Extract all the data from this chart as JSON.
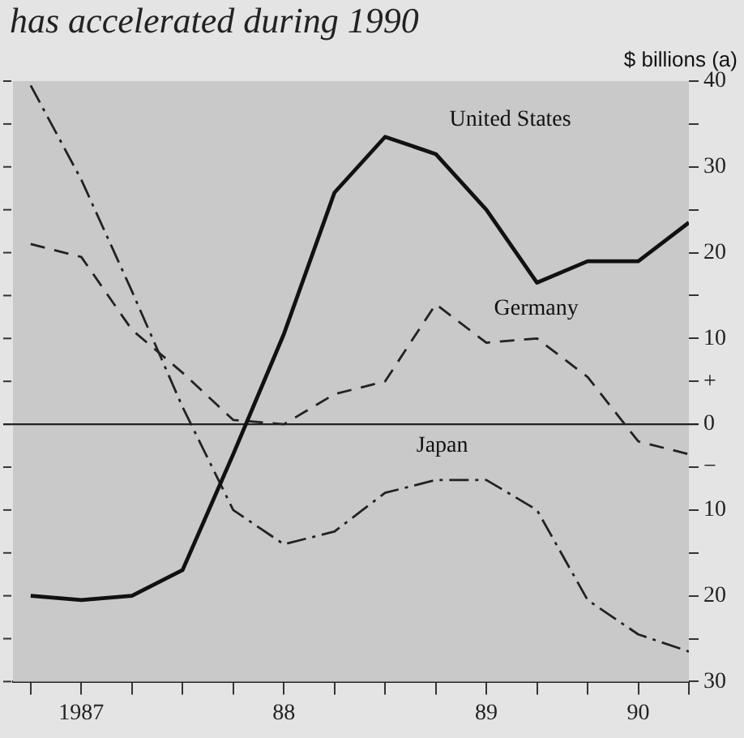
{
  "chart_data": {
    "type": "line",
    "title": "has accelerated during 1990",
    "ylabel": "$ billions (a)",
    "categories": [
      null,
      "1987",
      null,
      null,
      null,
      "88",
      null,
      null,
      null,
      "89",
      null,
      null,
      "90",
      null
    ],
    "series": [
      {
        "name": "United States",
        "color": "#111111",
        "line_style": "solid",
        "values": [
          -20,
          -20.5,
          -20,
          -17,
          -3.5,
          10.5,
          27,
          33.5,
          31.5,
          25,
          16.5,
          19,
          19,
          23.5
        ]
      },
      {
        "name": "Germany",
        "color": "#222222",
        "line_style": "dashed",
        "values": [
          21,
          19.5,
          11,
          6,
          0.5,
          0,
          3.5,
          5,
          14,
          9.5,
          10,
          5.5,
          -2,
          -3.5
        ]
      },
      {
        "name": "Japan",
        "color": "#222222",
        "line_style": "dashdot",
        "values": [
          39.5,
          28.5,
          15.5,
          2,
          -10,
          -14,
          -12.5,
          -8,
          -6.5,
          -6.5,
          -10,
          -20.5,
          -24.5,
          -26.5
        ]
      }
    ],
    "ylim": [
      -30,
      40
    ],
    "yticks": [
      {
        "value": -30,
        "label": "30"
      },
      {
        "value": -25,
        "label": null
      },
      {
        "value": -20,
        "label": "20"
      },
      {
        "value": -15,
        "label": null
      },
      {
        "value": -10,
        "label": "10"
      },
      {
        "value": -5,
        "label": "−"
      },
      0,
      {
        "value": 5,
        "label": "+"
      },
      10,
      {
        "value": 15,
        "label": null
      },
      20,
      {
        "value": 25,
        "label": null
      },
      30,
      {
        "value": 35,
        "label": null
      },
      40
    ],
    "ref_lines": [
      {
        "axis": "y",
        "value": 0,
        "color": "#222222",
        "line_style": "solid"
      }
    ],
    "grid": false,
    "legend": false,
    "marker": "none"
  }
}
